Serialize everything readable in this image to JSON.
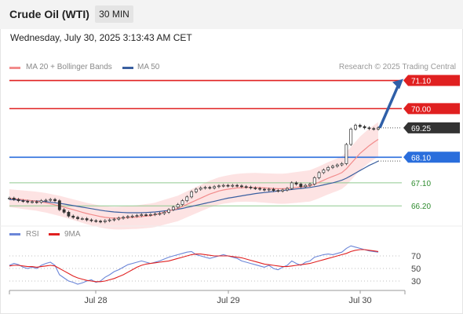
{
  "header": {
    "title": "Crude Oil (WTI)",
    "timeframe": "30 MIN",
    "datetime": "Wednesday, July 30, 2025 3:13:43 AM CET"
  },
  "legend": {
    "ma": "MA 20 + Bollinger Bands",
    "ma50": "MA 50",
    "copyright": "Research © 2025 Trading Central",
    "rsi": "RSI",
    "rsi_ma": "9MA"
  },
  "colors": {
    "resistance": "#e02020",
    "support": "#8fc98f",
    "pivot": "#2a6edc",
    "ma20": "#f28b8b",
    "ma50": "#3a5fa0",
    "bollinger": "#fde3e3",
    "up_candle": "#ffffff",
    "down_candle": "#333333",
    "rsi": "#6b86d8",
    "rsi_ma": "#e02020",
    "price_badge": "#333333",
    "arrow": "#2f5fa8"
  },
  "chart_data": [
    {
      "type": "candlestick",
      "title": "Crude Oil (WTI)",
      "timeframe": "30 MIN",
      "x_ticks": [
        "Jul 28",
        "Jul 29",
        "Jul 30"
      ],
      "current_price": 69.25,
      "ylim": [
        65.9,
        71.3
      ],
      "levels": [
        {
          "value": 71.1,
          "label": "71.10",
          "kind": "resistance"
        },
        {
          "value": 70.0,
          "label": "70.00",
          "kind": "resistance"
        },
        {
          "value": 68.1,
          "label": "68.10",
          "kind": "pivot"
        },
        {
          "value": 67.1,
          "label": "67.10",
          "kind": "support"
        },
        {
          "value": 66.2,
          "label": "66.20",
          "kind": "support"
        }
      ],
      "close": [
        66.5,
        66.45,
        66.4,
        66.38,
        66.35,
        66.36,
        66.34,
        66.4,
        66.42,
        66.45,
        66.4,
        66.05,
        65.95,
        65.8,
        65.75,
        65.7,
        65.7,
        65.65,
        65.62,
        65.6,
        65.58,
        65.62,
        65.65,
        65.68,
        65.72,
        65.75,
        65.78,
        65.8,
        65.82,
        65.85,
        65.84,
        65.86,
        65.88,
        65.9,
        65.95,
        66.05,
        66.15,
        66.25,
        66.4,
        66.55,
        66.75,
        66.85,
        66.9,
        66.92,
        66.9,
        66.95,
        66.98,
        67.0,
        66.98,
        67.0,
        66.98,
        66.95,
        66.93,
        66.9,
        66.88,
        66.85,
        66.82,
        66.85,
        66.8,
        66.78,
        66.82,
        66.88,
        67.1,
        67.05,
        66.95,
        67.0,
        67.05,
        67.3,
        67.5,
        67.6,
        67.7,
        67.75,
        67.8,
        67.85,
        68.6,
        69.2,
        69.35,
        69.3,
        69.25,
        69.22,
        69.2,
        69.25
      ],
      "ma20": [
        66.5,
        66.48,
        66.46,
        66.44,
        66.42,
        66.4,
        66.38,
        66.35,
        66.32,
        66.28,
        66.24,
        66.2,
        66.15,
        66.1,
        66.05,
        66.0,
        65.95,
        65.9,
        65.86,
        65.82,
        65.78,
        65.75,
        65.73,
        65.72,
        65.72,
        65.73,
        65.74,
        65.75,
        65.76,
        65.78,
        65.8,
        65.82,
        65.85,
        65.9,
        65.95,
        66.0,
        66.05,
        66.1,
        66.18,
        66.26,
        66.34,
        66.42,
        66.5,
        66.58,
        66.66,
        66.72,
        66.78,
        66.82,
        66.85,
        66.88,
        66.9,
        66.91,
        66.92,
        66.92,
        66.92,
        66.91,
        66.9,
        66.89,
        66.88,
        66.87,
        66.87,
        66.88,
        66.9,
        66.92,
        66.94,
        66.96,
        66.98,
        67.05,
        67.12,
        67.2,
        67.28,
        67.35,
        67.42,
        67.5,
        67.65,
        67.85,
        68.05,
        68.25,
        68.4,
        68.55,
        68.68,
        68.8
      ],
      "ma50": [
        66.45,
        66.44,
        66.43,
        66.42,
        66.41,
        66.4,
        66.39,
        66.38,
        66.36,
        66.34,
        66.32,
        66.3,
        66.27,
        66.24,
        66.21,
        66.18,
        66.15,
        66.12,
        66.09,
        66.06,
        66.03,
        66.0,
        65.98,
        65.96,
        65.95,
        65.94,
        65.93,
        65.93,
        65.93,
        65.93,
        65.94,
        65.95,
        65.96,
        65.98,
        66.0,
        66.02,
        66.04,
        66.07,
        66.1,
        66.14,
        66.18,
        66.22,
        66.26,
        66.3,
        66.34,
        66.38,
        66.42,
        66.46,
        66.5,
        66.53,
        66.56,
        66.59,
        66.62,
        66.65,
        66.68,
        66.7,
        66.72,
        66.74,
        66.76,
        66.78,
        66.8,
        66.82,
        66.84,
        66.86,
        66.88,
        66.9,
        66.92,
        66.95,
        66.98,
        67.02,
        67.06,
        67.1,
        67.15,
        67.2,
        67.28,
        67.38,
        67.48,
        67.58,
        67.68,
        67.78,
        67.86,
        67.95
      ],
      "forecast_arrow": {
        "from": 69.25,
        "to": 71.1
      }
    },
    {
      "type": "line",
      "series": [
        {
          "name": "RSI",
          "values": [
            55,
            58,
            56,
            52,
            50,
            52,
            50,
            55,
            58,
            60,
            55,
            40,
            35,
            30,
            28,
            25,
            27,
            30,
            32,
            28,
            30,
            36,
            40,
            45,
            48,
            52,
            56,
            58,
            60,
            62,
            60,
            58,
            60,
            62,
            65,
            68,
            70,
            72,
            74,
            76,
            77,
            72,
            70,
            68,
            66,
            68,
            70,
            72,
            70,
            68,
            66,
            62,
            60,
            58,
            56,
            54,
            52,
            55,
            50,
            48,
            52,
            55,
            62,
            58,
            55,
            60,
            62,
            68,
            70,
            72,
            73,
            72,
            74,
            76,
            82,
            86,
            84,
            82,
            80,
            78,
            77,
            76
          ]
        },
        {
          "name": "9MA",
          "values": [
            54,
            55,
            55,
            54,
            53,
            53,
            52,
            53,
            54,
            55,
            54,
            50,
            46,
            42,
            38,
            35,
            33,
            31,
            30,
            29,
            29,
            30,
            32,
            34,
            37,
            40,
            44,
            48,
            52,
            55,
            57,
            58,
            59,
            60,
            61,
            62,
            64,
            66,
            68,
            70,
            72,
            73,
            73,
            72,
            71,
            70,
            70,
            70,
            70,
            69,
            68,
            67,
            65,
            63,
            61,
            59,
            57,
            56,
            55,
            54,
            53,
            53,
            54,
            55,
            56,
            57,
            58,
            60,
            62,
            64,
            66,
            68,
            70,
            72,
            74,
            77,
            79,
            80,
            80,
            79,
            78,
            77
          ]
        }
      ],
      "y_ticks": [
        70,
        50,
        30
      ],
      "ylim": [
        25,
        90
      ]
    }
  ]
}
